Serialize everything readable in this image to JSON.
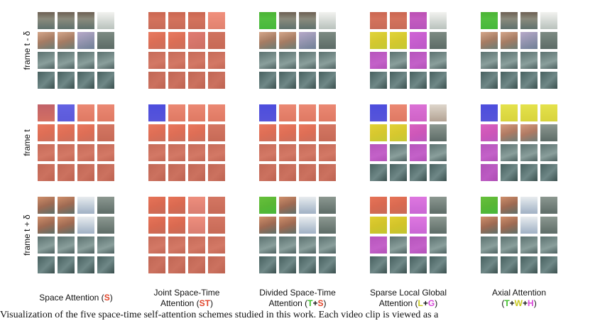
{
  "row_labels": [
    "frame t - δ",
    "frame t",
    "frame t + δ"
  ],
  "columns": [
    {
      "line1": "Space Attention (",
      "line2": "",
      "parts": [
        {
          "text": "S",
          "color": "#e0452b"
        }
      ],
      "suffix": ")"
    },
    {
      "line1": "Joint Space-Time",
      "line2": "Attention (",
      "parts": [
        {
          "text": "ST",
          "color": "#e0452b"
        }
      ],
      "suffix": ")"
    },
    {
      "line1": "Divided Space-Time",
      "line2": "Attention (",
      "parts": [
        {
          "text": "T",
          "color": "#3fbf2a"
        },
        {
          "text": "+",
          "color": "#111111"
        },
        {
          "text": "S",
          "color": "#e0452b"
        }
      ],
      "suffix": ")"
    },
    {
      "line1": "Sparse Local Global",
      "line2": "Attention (",
      "parts": [
        {
          "text": "L",
          "color": "#c8c81e"
        },
        {
          "text": "+",
          "color": "#111111"
        },
        {
          "text": "G",
          "color": "#d94ad9"
        }
      ],
      "suffix": ")"
    },
    {
      "line1": "Axial Attention",
      "line2": "(",
      "parts": [
        {
          "text": "T",
          "color": "#3fbf2a"
        },
        {
          "text": "+",
          "color": "#111111"
        },
        {
          "text": "W",
          "color": "#c8c81e"
        },
        {
          "text": "+",
          "color": "#111111"
        },
        {
          "text": "H",
          "color": "#d94ad9"
        }
      ],
      "suffix": ")"
    }
  ],
  "figure_caption": "Visualization of the five space-time self-attention schemes studied in this work. Each video clip is viewed as a",
  "colors": {
    "query": "#4d4ee6",
    "space": "#f06a50",
    "time": "#3fd42a",
    "local": "#e6e61a",
    "global": "#d94ad9",
    "width": "#e6e61a",
    "height": "#d94ad9"
  },
  "highlights": [
    [
      [],
      [
        {
          "r": 0,
          "c": 1,
          "k": "query"
        },
        {
          "r": 1,
          "c": 0,
          "k": "space"
        },
        {
          "r": 1,
          "c": 1,
          "k": "space"
        },
        {
          "r": 1,
          "c": 2,
          "k": "space"
        },
        {
          "r": 1,
          "c": 3,
          "k": "space"
        },
        {
          "r": 0,
          "c": 0,
          "k": "space"
        },
        {
          "r": 0,
          "c": 2,
          "k": "space"
        },
        {
          "r": 0,
          "c": 3,
          "k": "space"
        },
        {
          "r": 2,
          "c": 0,
          "k": "space"
        },
        {
          "r": 2,
          "c": 1,
          "k": "space"
        },
        {
          "r": 2,
          "c": 2,
          "k": "space"
        },
        {
          "r": 2,
          "c": 3,
          "k": "space"
        },
        {
          "r": 3,
          "c": 0,
          "k": "space"
        },
        {
          "r": 3,
          "c": 1,
          "k": "space"
        },
        {
          "r": 3,
          "c": 2,
          "k": "space"
        },
        {
          "r": 3,
          "c": 3,
          "k": "space"
        }
      ],
      []
    ],
    [
      [
        {
          "r": 0,
          "c": 0,
          "k": "space"
        },
        {
          "r": 0,
          "c": 1,
          "k": "space"
        },
        {
          "r": 0,
          "c": 2,
          "k": "space"
        },
        {
          "r": 0,
          "c": 3,
          "k": "space"
        },
        {
          "r": 1,
          "c": 0,
          "k": "space"
        },
        {
          "r": 1,
          "c": 1,
          "k": "space"
        },
        {
          "r": 1,
          "c": 2,
          "k": "space"
        },
        {
          "r": 1,
          "c": 3,
          "k": "space"
        },
        {
          "r": 2,
          "c": 0,
          "k": "space"
        },
        {
          "r": 2,
          "c": 1,
          "k": "space"
        },
        {
          "r": 2,
          "c": 2,
          "k": "space"
        },
        {
          "r": 2,
          "c": 3,
          "k": "space"
        },
        {
          "r": 3,
          "c": 0,
          "k": "space"
        },
        {
          "r": 3,
          "c": 1,
          "k": "space"
        },
        {
          "r": 3,
          "c": 2,
          "k": "space"
        },
        {
          "r": 3,
          "c": 3,
          "k": "space"
        }
      ],
      [
        {
          "r": 0,
          "c": 0,
          "k": "query"
        },
        {
          "r": 0,
          "c": 1,
          "k": "space"
        },
        {
          "r": 0,
          "c": 2,
          "k": "space"
        },
        {
          "r": 0,
          "c": 3,
          "k": "space"
        },
        {
          "r": 1,
          "c": 0,
          "k": "space"
        },
        {
          "r": 1,
          "c": 1,
          "k": "space"
        },
        {
          "r": 1,
          "c": 2,
          "k": "space"
        },
        {
          "r": 1,
          "c": 3,
          "k": "space"
        },
        {
          "r": 2,
          "c": 0,
          "k": "space"
        },
        {
          "r": 2,
          "c": 1,
          "k": "space"
        },
        {
          "r": 2,
          "c": 2,
          "k": "space"
        },
        {
          "r": 2,
          "c": 3,
          "k": "space"
        },
        {
          "r": 3,
          "c": 0,
          "k": "space"
        },
        {
          "r": 3,
          "c": 1,
          "k": "space"
        },
        {
          "r": 3,
          "c": 2,
          "k": "space"
        },
        {
          "r": 3,
          "c": 3,
          "k": "space"
        }
      ],
      [
        {
          "r": 0,
          "c": 0,
          "k": "space"
        },
        {
          "r": 0,
          "c": 1,
          "k": "space"
        },
        {
          "r": 0,
          "c": 2,
          "k": "space"
        },
        {
          "r": 0,
          "c": 3,
          "k": "space"
        },
        {
          "r": 1,
          "c": 0,
          "k": "space"
        },
        {
          "r": 1,
          "c": 1,
          "k": "space"
        },
        {
          "r": 1,
          "c": 2,
          "k": "space"
        },
        {
          "r": 1,
          "c": 3,
          "k": "space"
        },
        {
          "r": 2,
          "c": 0,
          "k": "space"
        },
        {
          "r": 2,
          "c": 1,
          "k": "space"
        },
        {
          "r": 2,
          "c": 2,
          "k": "space"
        },
        {
          "r": 2,
          "c": 3,
          "k": "space"
        },
        {
          "r": 3,
          "c": 0,
          "k": "space"
        },
        {
          "r": 3,
          "c": 1,
          "k": "space"
        },
        {
          "r": 3,
          "c": 2,
          "k": "space"
        },
        {
          "r": 3,
          "c": 3,
          "k": "space"
        }
      ]
    ],
    [
      [
        {
          "r": 0,
          "c": 0,
          "k": "time"
        }
      ],
      [
        {
          "r": 0,
          "c": 0,
          "k": "query"
        },
        {
          "r": 0,
          "c": 1,
          "k": "space"
        },
        {
          "r": 0,
          "c": 2,
          "k": "space"
        },
        {
          "r": 0,
          "c": 3,
          "k": "space"
        },
        {
          "r": 1,
          "c": 0,
          "k": "space"
        },
        {
          "r": 1,
          "c": 1,
          "k": "space"
        },
        {
          "r": 1,
          "c": 2,
          "k": "space"
        },
        {
          "r": 1,
          "c": 3,
          "k": "space"
        },
        {
          "r": 2,
          "c": 0,
          "k": "space"
        },
        {
          "r": 2,
          "c": 1,
          "k": "space"
        },
        {
          "r": 2,
          "c": 2,
          "k": "space"
        },
        {
          "r": 2,
          "c": 3,
          "k": "space"
        },
        {
          "r": 3,
          "c": 0,
          "k": "space"
        },
        {
          "r": 3,
          "c": 1,
          "k": "space"
        },
        {
          "r": 3,
          "c": 2,
          "k": "space"
        },
        {
          "r": 3,
          "c": 3,
          "k": "space"
        }
      ],
      [
        {
          "r": 0,
          "c": 0,
          "k": "time"
        }
      ]
    ],
    [
      [
        {
          "r": 0,
          "c": 0,
          "k": "space"
        },
        {
          "r": 0,
          "c": 1,
          "k": "space"
        },
        {
          "r": 0,
          "c": 2,
          "k": "global"
        },
        {
          "r": 1,
          "c": 0,
          "k": "local"
        },
        {
          "r": 1,
          "c": 1,
          "k": "local"
        },
        {
          "r": 1,
          "c": 2,
          "k": "global"
        },
        {
          "r": 2,
          "c": 0,
          "k": "global"
        },
        {
          "r": 2,
          "c": 2,
          "k": "global"
        }
      ],
      [
        {
          "r": 0,
          "c": 0,
          "k": "query"
        },
        {
          "r": 0,
          "c": 1,
          "k": "space"
        },
        {
          "r": 0,
          "c": 2,
          "k": "global"
        },
        {
          "r": 1,
          "c": 0,
          "k": "local"
        },
        {
          "r": 1,
          "c": 1,
          "k": "local"
        },
        {
          "r": 1,
          "c": 2,
          "k": "global"
        },
        {
          "r": 2,
          "c": 0,
          "k": "global"
        },
        {
          "r": 2,
          "c": 2,
          "k": "global"
        }
      ],
      [
        {
          "r": 0,
          "c": 0,
          "k": "space"
        },
        {
          "r": 0,
          "c": 1,
          "k": "space"
        },
        {
          "r": 0,
          "c": 2,
          "k": "global"
        },
        {
          "r": 1,
          "c": 0,
          "k": "local"
        },
        {
          "r": 1,
          "c": 1,
          "k": "local"
        },
        {
          "r": 1,
          "c": 2,
          "k": "global"
        },
        {
          "r": 2,
          "c": 0,
          "k": "global"
        },
        {
          "r": 2,
          "c": 2,
          "k": "global"
        }
      ]
    ],
    [
      [
        {
          "r": 0,
          "c": 0,
          "k": "time"
        }
      ],
      [
        {
          "r": 0,
          "c": 0,
          "k": "query"
        },
        {
          "r": 0,
          "c": 1,
          "k": "width"
        },
        {
          "r": 0,
          "c": 2,
          "k": "width"
        },
        {
          "r": 0,
          "c": 3,
          "k": "width"
        },
        {
          "r": 1,
          "c": 0,
          "k": "height"
        },
        {
          "r": 2,
          "c": 0,
          "k": "height"
        },
        {
          "r": 3,
          "c": 0,
          "k": "height"
        }
      ],
      [
        {
          "r": 0,
          "c": 0,
          "k": "time"
        }
      ]
    ]
  ]
}
